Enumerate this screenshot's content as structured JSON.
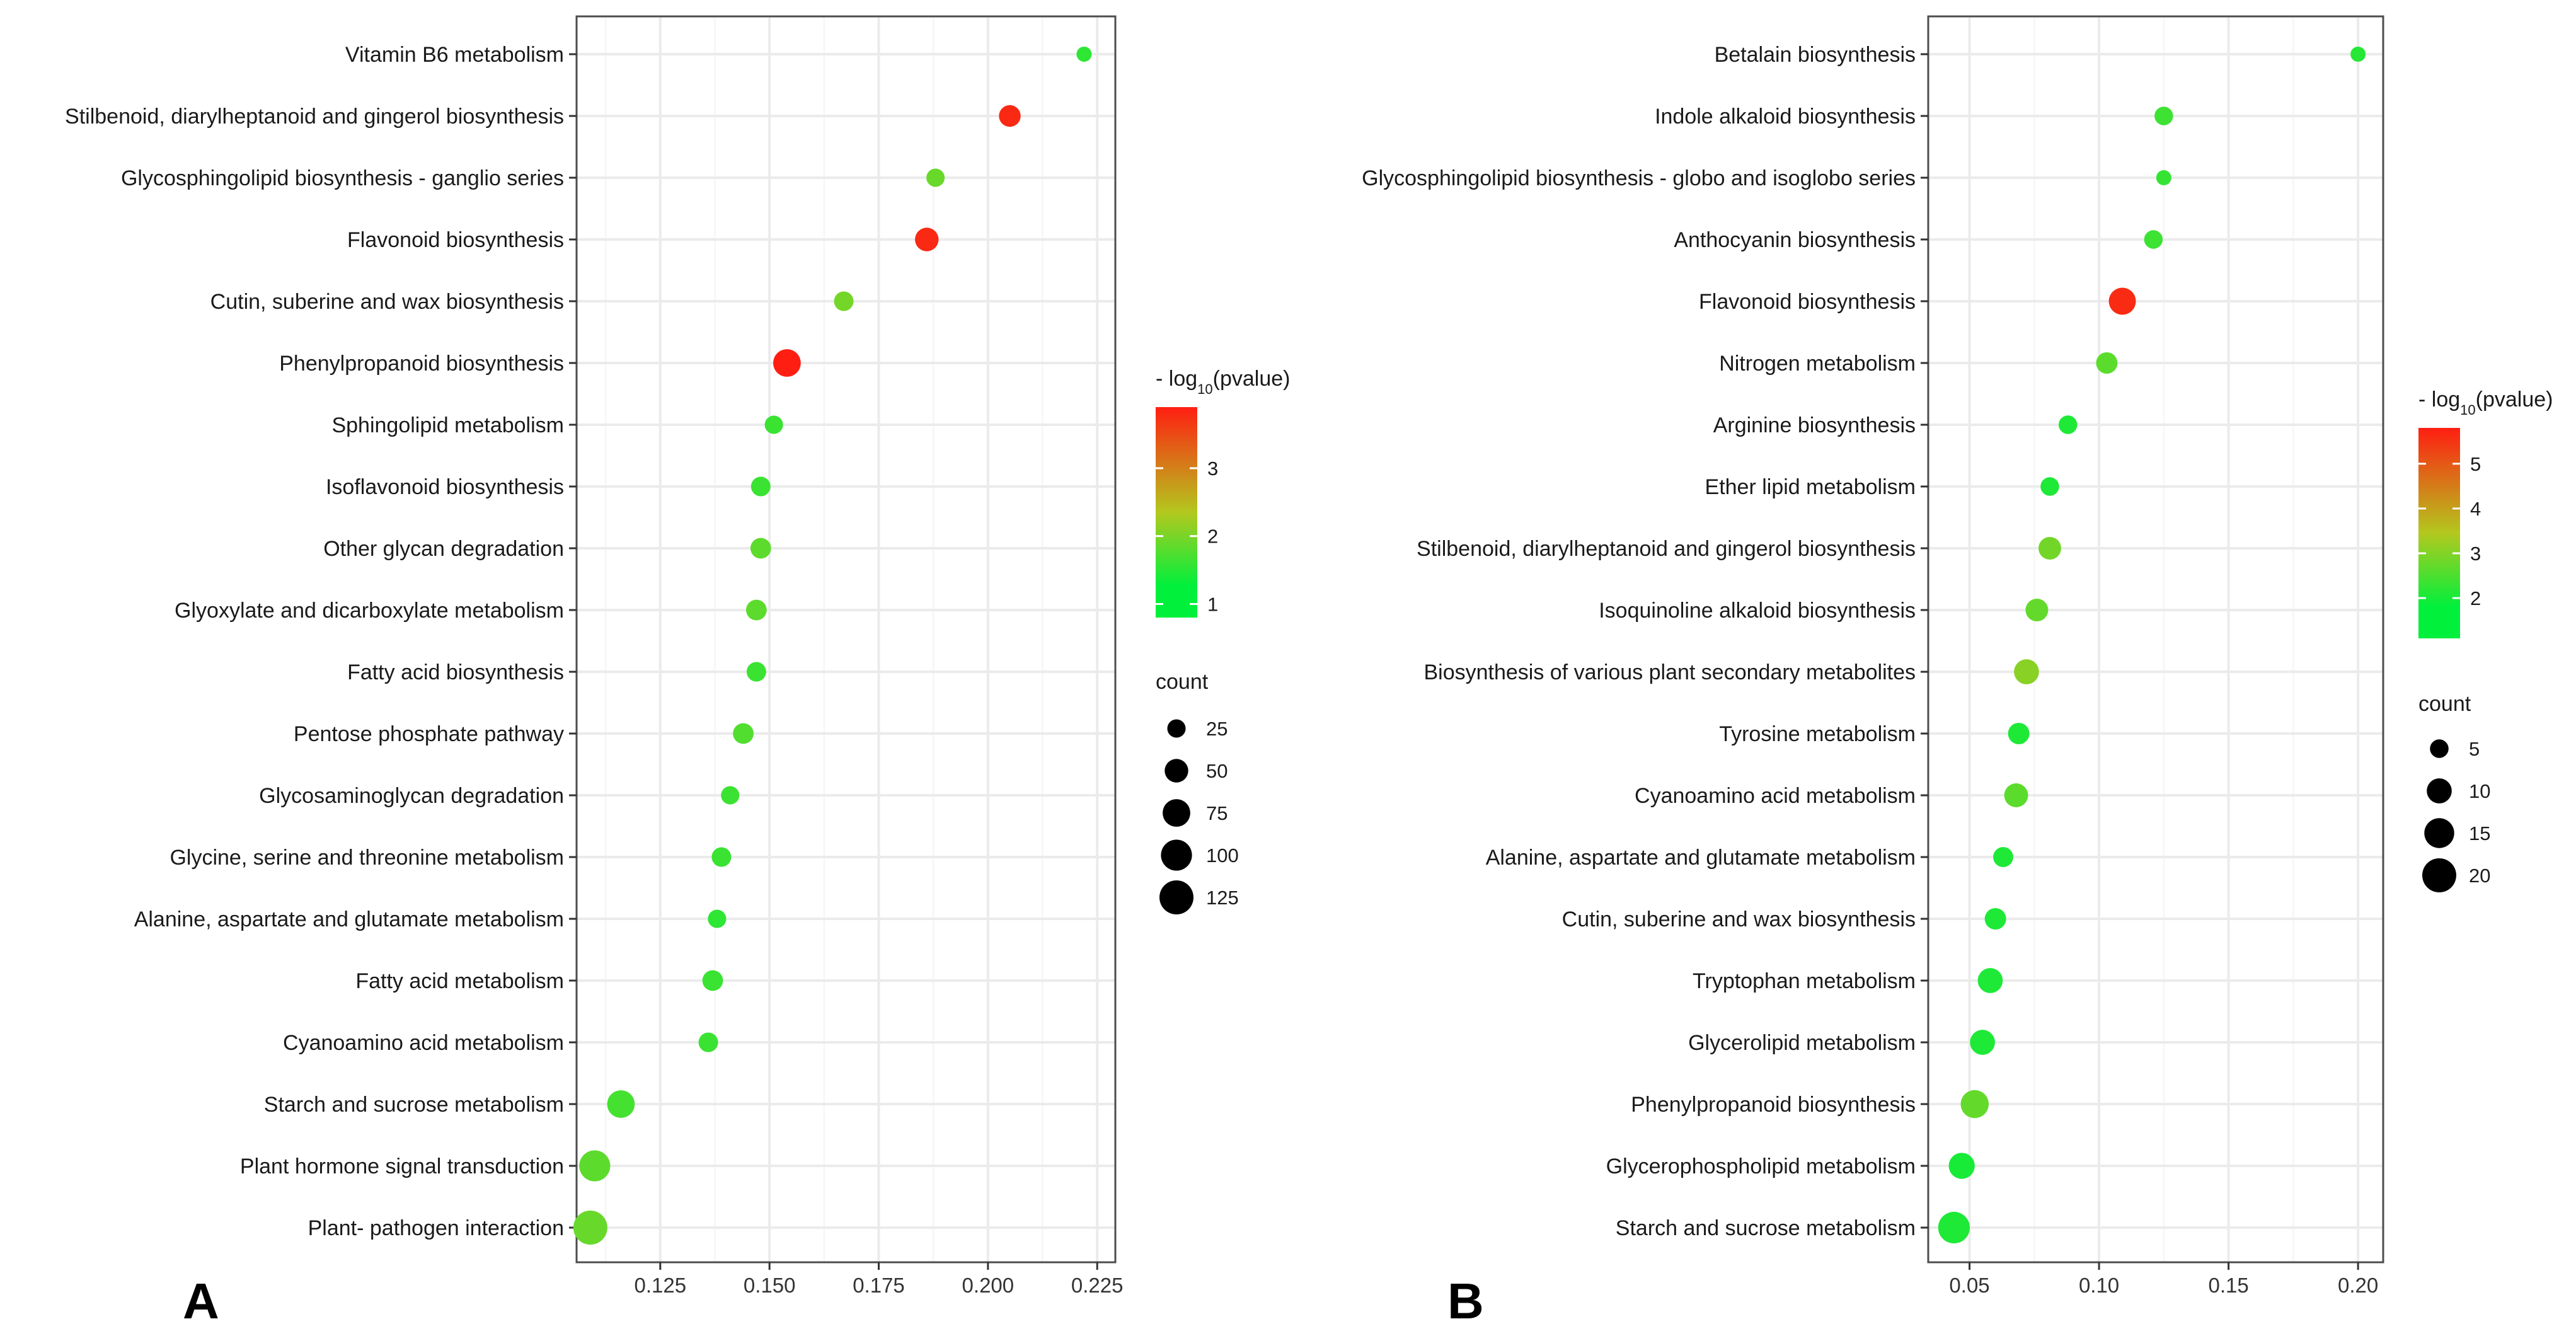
{
  "colors": {
    "low": "#00f03c",
    "mid": "#b3c81e",
    "high": "#ff1e12",
    "grid": "#ebebeb",
    "border": "#4d4d4d"
  },
  "chart_data": [
    {
      "type": "scatter",
      "panel_label": "A",
      "title": "",
      "xlabel": "",
      "ylabel": "",
      "xlim": [
        0.107,
        0.228
      ],
      "xticks": [
        0.125,
        0.15,
        0.175,
        0.2,
        0.225
      ],
      "xtick_labels": [
        "0.125",
        "0.150",
        "0.175",
        "0.200",
        "0.225"
      ],
      "categories": [
        "Vitamin B6 metabolism",
        "Stilbenoid, diarylheptanoid and gingerol biosynthesis",
        "Glycosphingolipid biosynthesis -  ganglio series",
        "Flavonoid biosynthesis",
        "Cutin, suberine and wax biosynthesis",
        "Phenylpropanoid biosynthesis",
        "Sphingolipid metabolism",
        "Isoflavonoid biosynthesis",
        "Other glycan degradation",
        "Glyoxylate and dicarboxylate metabolism",
        "Fatty acid biosynthesis",
        "Pentose phosphate pathway",
        "Glycosaminoglycan degradation",
        "Glycine, serine and threonine metabolism",
        "Alanine, aspartate and glutamate metabolism",
        "Fatty acid metabolism",
        "Cyanoamino acid metabolism",
        "Starch and sucrose metabolism",
        "Plant hormone signal transduction",
        "Plant- pathogen interaction"
      ],
      "rich_factor": [
        0.222,
        0.205,
        0.188,
        0.186,
        0.167,
        0.154,
        0.151,
        0.148,
        0.148,
        0.147,
        0.147,
        0.144,
        0.141,
        0.139,
        0.138,
        0.137,
        0.136,
        0.116,
        0.11,
        0.109
      ],
      "neg_log10_pvalue": [
        1.2,
        3.8,
        1.7,
        3.8,
        1.8,
        3.9,
        1.3,
        1.3,
        1.6,
        1.6,
        1.3,
        1.5,
        1.3,
        1.3,
        1.2,
        1.3,
        1.3,
        1.4,
        1.6,
        1.7
      ],
      "count": [
        14,
        40,
        25,
        50,
        30,
        75,
        25,
        30,
        35,
        35,
        30,
        35,
        25,
        30,
        25,
        35,
        30,
        75,
        100,
        125
      ],
      "color_legend": {
        "title_prefix": "- log",
        "title_sub": "10",
        "title_suffix": "(pvalue)",
        "range": [
          0.8,
          3.9
        ],
        "ticks": [
          1,
          2,
          3
        ]
      },
      "size_legend": {
        "title": "count",
        "values": [
          25,
          50,
          75,
          100,
          125
        ],
        "range": [
          14,
          125
        ]
      }
    },
    {
      "type": "scatter",
      "panel_label": "B",
      "title": "",
      "xlabel": "",
      "ylabel": "",
      "xlim": [
        0.036,
        0.208
      ],
      "xticks": [
        0.05,
        0.1,
        0.15,
        0.2
      ],
      "xtick_labels": [
        "0.05",
        "0.10",
        "0.15",
        "0.20"
      ],
      "categories": [
        "Betalain biosynthesis",
        "Indole alkaloid biosynthesis",
        "Glycosphingolipid biosynthesis -  globo and isoglobo series",
        "Anthocyanin biosynthesis",
        "Flavonoid biosynthesis",
        "Nitrogen metabolism",
        "Arginine biosynthesis",
        "Ether lipid metabolism",
        "Stilbenoid, diarylheptanoid and gingerol biosynthesis",
        "Isoquinoline alkaloid biosynthesis",
        "Biosynthesis of various plant secondary metabolites",
        "Tyrosine metabolism",
        "Cyanoamino acid metabolism",
        "Alanine, aspartate and glutamate metabolism",
        "Cutin, suberine and wax biosynthesis",
        "Tryptophan metabolism",
        "Glycerolipid metabolism",
        "Phenylpropanoid biosynthesis",
        "Glycerophospholipid metabolism",
        "Starch and sucrose metabolism"
      ],
      "rich_factor": [
        0.2,
        0.125,
        0.125,
        0.121,
        0.109,
        0.103,
        0.088,
        0.081,
        0.081,
        0.076,
        0.072,
        0.069,
        0.068,
        0.063,
        0.06,
        0.058,
        0.055,
        0.052,
        0.047,
        0.044
      ],
      "neg_log10_pvalue": [
        1.6,
        1.9,
        1.8,
        1.9,
        5.6,
        2.3,
        1.5,
        1.5,
        2.6,
        2.4,
        2.9,
        1.5,
        2.3,
        1.5,
        1.5,
        1.5,
        1.5,
        2.4,
        1.4,
        1.5
      ],
      "count": [
        3,
        5,
        3,
        5,
        12,
        7,
        5,
        5,
        8,
        8,
        10,
        7,
        9,
        6,
        7,
        10,
        10,
        13,
        11,
        17
      ],
      "color_legend": {
        "title_prefix": "- log",
        "title_sub": "10",
        "title_suffix": "(pvalue)",
        "range": [
          1.1,
          5.8
        ],
        "ticks": [
          2,
          3,
          4,
          5
        ]
      },
      "size_legend": {
        "title": "count",
        "values": [
          5,
          10,
          15,
          20
        ],
        "range": [
          3,
          20
        ]
      }
    }
  ]
}
